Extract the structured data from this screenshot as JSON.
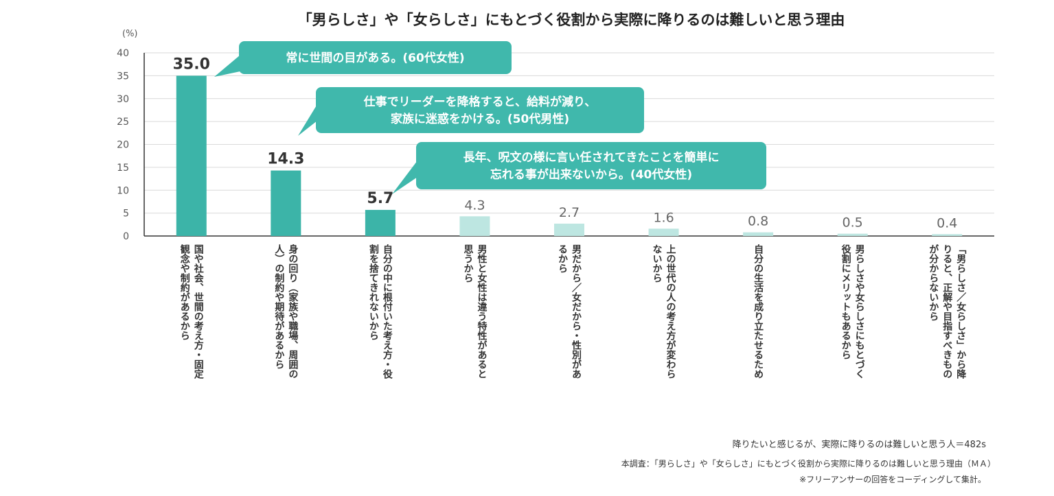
{
  "colors": {
    "primary": "#3cb4a8",
    "light": "#bde6e1",
    "callout": "#40b8ac",
    "grid": "#d9d9d9"
  },
  "chart_data": {
    "type": "bar",
    "title": "「男らしさ」や「女らしさ」にもとづく役割から実際に降りるのは難しいと思う理由",
    "ylabel": "(%)",
    "ylim": [
      0,
      40
    ],
    "yticks": [
      0,
      5,
      10,
      15,
      20,
      25,
      30,
      35,
      40
    ],
    "grid": true,
    "categories": [
      [
        "国や社会、世間の考え方・固定",
        "観念や制約があるから"
      ],
      [
        "身の回り（家族や職場、周囲の",
        "人）の制約や期待があるから"
      ],
      [
        "自分の中に根付いた考え方・役",
        "割を捨てきれないから"
      ],
      [
        "男性と女性は違う特性があると",
        "思うから"
      ],
      [
        "男だから／女だから・性別があ",
        "るから"
      ],
      [
        "上の世代の人の考え方が変わら",
        "ないから"
      ],
      [
        "自分の生活を成り立たせるため"
      ],
      [
        "男らしさや女らしさにもとづく",
        "役割にメリットもあるから"
      ],
      [
        "「男らしさ／女らしさ」から降",
        "りると、正解や目指すべきもの",
        "が分からないから"
      ]
    ],
    "values": [
      35.0,
      14.3,
      5.7,
      4.3,
      2.7,
      1.6,
      0.8,
      0.5,
      0.4
    ],
    "value_labels": [
      "35.0",
      "14.3",
      "5.7",
      "4.3",
      "2.7",
      "1.6",
      "0.8",
      "0.5",
      "0.4"
    ],
    "highlight_count": 3,
    "annotations": [
      {
        "target": 0,
        "lines": [
          "常に世間の目がある。(60代女性)"
        ]
      },
      {
        "target": 1,
        "lines": [
          "仕事でリーダーを降格すると、給料が減り、",
          "家族に迷惑をかける。(50代男性)"
        ]
      },
      {
        "target": 2,
        "lines": [
          "長年、呪文の様に言い任されてきたことを簡単に",
          "忘れる事が出来ないから。(40代女性)"
        ]
      }
    ]
  },
  "notes": {
    "sample": "降りたいと感じるが、実際に降りるのは難しいと思う人＝482s",
    "survey": "本調査：「男らしさ」や「女らしさ」にもとづく役割から実際に降りるのは難しいと思う理由（ＭＡ）",
    "coding": "※フリーアンサーの回答をコーディングして集計。"
  }
}
